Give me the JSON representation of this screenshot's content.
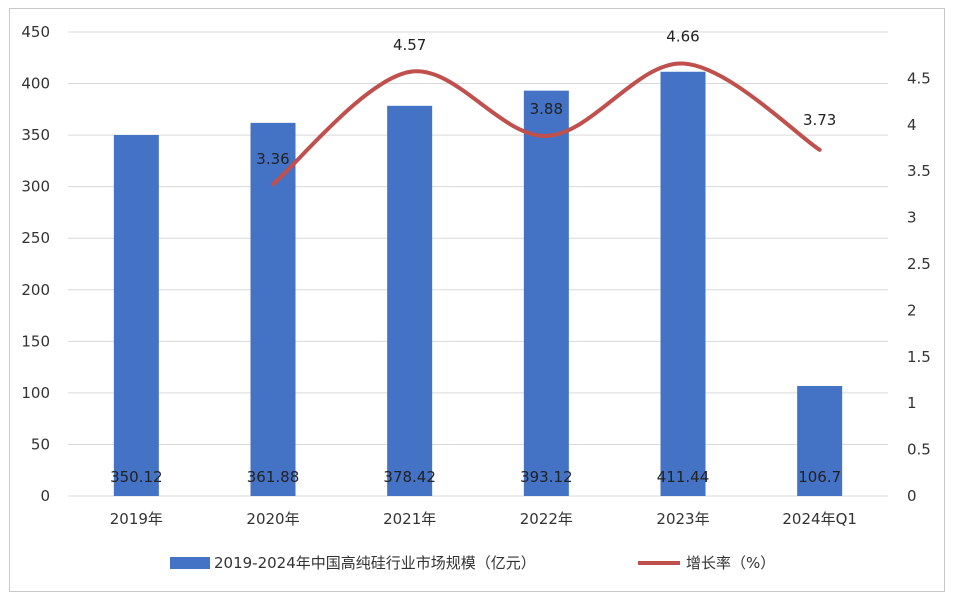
{
  "chart_data": {
    "type": "bar+line",
    "categories": [
      "2019年",
      "2020年",
      "2021年",
      "2022年",
      "2023年",
      "2024年Q1"
    ],
    "series": [
      {
        "name": "2019-2024年中国高纯硅行业市场规模（亿元）",
        "type": "bar",
        "axis": "left",
        "color": "#4472c4",
        "values": [
          350.12,
          361.88,
          378.42,
          393.12,
          411.44,
          106.7
        ],
        "labels": [
          "350.12",
          "361.88",
          "378.42",
          "393.12",
          "411.44",
          "106.7"
        ]
      },
      {
        "name": "增长率（%）",
        "type": "line",
        "axis": "right",
        "color": "#c0504d",
        "values": [
          null,
          3.36,
          4.57,
          3.88,
          4.66,
          3.73
        ],
        "labels": [
          "",
          "3.36",
          "4.57",
          "3.88",
          "4.66",
          "3.73"
        ]
      }
    ],
    "y_left": {
      "range": [
        0,
        450
      ],
      "ticks": [
        0,
        50,
        100,
        150,
        200,
        250,
        300,
        350,
        400,
        450
      ],
      "tick_labels": [
        "0",
        "50",
        "100",
        "150",
        "200",
        "250",
        "300",
        "350",
        "400",
        "450"
      ]
    },
    "y_right": {
      "range": [
        0,
        5
      ],
      "ticks": [
        0,
        0.5,
        1,
        1.5,
        2,
        2.5,
        3,
        3.5,
        4,
        4.5
      ],
      "tick_labels": [
        "0",
        "0.5",
        "1",
        "1.5",
        "2",
        "2.5",
        "3",
        "3.5",
        "4",
        "4.5"
      ]
    },
    "grid": true,
    "legend_position": "bottom"
  }
}
